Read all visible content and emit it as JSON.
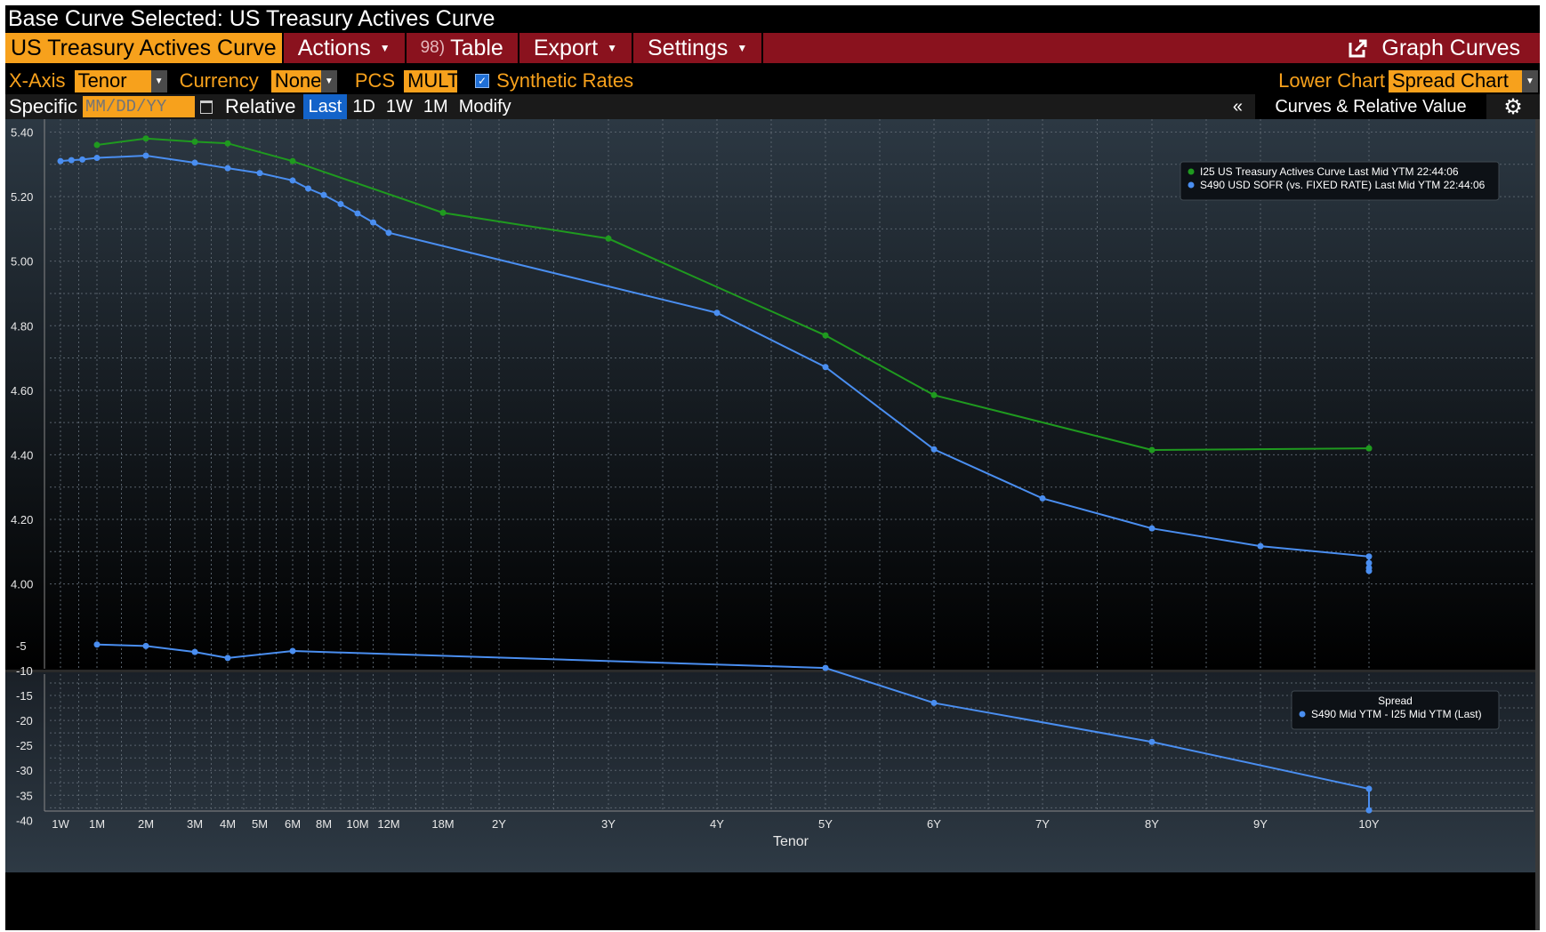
{
  "window": {
    "title": "Base Curve Selected: US Treasury Actives Curve"
  },
  "menu": {
    "active_tab": "US Treasury Actives Curve",
    "actions": "Actions",
    "table_icon_text": "98)",
    "table": "Table",
    "export": "Export",
    "settings": "Settings",
    "graph_curves": "Graph Curves"
  },
  "options": {
    "xaxis_label": "X-Axis",
    "xaxis_value": "Tenor",
    "currency_label": "Currency",
    "currency_value": "None",
    "pcs_label": "PCS",
    "pcs_value": "MULT",
    "synthetic_label": "Synthetic Rates",
    "lower_chart_label": "Lower Chart",
    "lower_chart_value": "Spread Chart"
  },
  "datebar": {
    "specific_label": "Specific",
    "date_placeholder": "MM/DD/YY",
    "relative_label": "Relative",
    "buttons": [
      "Last",
      "1D",
      "1W",
      "1M",
      "Modify"
    ],
    "collapse": "«",
    "panel_title": "Curves & Relative Value"
  },
  "colors": {
    "accent": "#f7a11c",
    "menu": "#8a121e",
    "treasury": "#1f9a1f",
    "sofr": "#4a8ef0",
    "active_button": "#1363c9"
  },
  "icons": [
    "calendar-icon",
    "external-link-icon",
    "gear-icon",
    "checkbox-checked-icon"
  ],
  "chart_data": [
    {
      "type": "line",
      "x_categories": [
        "1W",
        "1M",
        "2M",
        "3M",
        "4M",
        "5M",
        "6M",
        "8M",
        "10M",
        "12M",
        "18M",
        "2Y",
        "3Y",
        "4Y",
        "5Y",
        "6Y",
        "7Y",
        "8Y",
        "9Y",
        "10Y"
      ],
      "ylim": [
        3.93,
        5.44
      ],
      "yticks": [
        "4.00",
        "4.20",
        "4.40",
        "4.60",
        "4.80",
        "5.00",
        "5.20",
        "5.40"
      ],
      "grid": true,
      "legend_placement": "top-right",
      "series": [
        {
          "name": "I25 US Treasury Actives Curve Last Mid YTM 22:44:06",
          "color": "#1f9a1f",
          "points": [
            [
              1,
              5.36
            ],
            [
              2,
              5.38
            ],
            [
              3,
              5.37
            ],
            [
              4,
              5.365
            ],
            [
              6,
              5.31
            ],
            [
              10,
              5.15
            ],
            [
              12,
              5.07
            ],
            [
              14,
              4.77
            ],
            [
              15,
              4.585
            ],
            [
              17,
              4.415
            ],
            [
              19,
              4.42
            ],
            [
              22,
              4.42
            ]
          ]
        },
        {
          "name": "S490 USD SOFR (vs. FIXED RATE) Last Mid YTM 22:44:06",
          "color": "#4a8ef0",
          "points": [
            [
              0,
              5.31
            ],
            [
              0.3,
              5.313
            ],
            [
              0.6,
              5.315
            ],
            [
              1,
              5.32
            ],
            [
              2,
              5.327
            ],
            [
              3,
              5.305
            ],
            [
              4,
              5.288
            ],
            [
              5,
              5.273
            ],
            [
              6,
              5.25
            ],
            [
              6.5,
              5.225
            ],
            [
              7,
              5.205
            ],
            [
              7.5,
              5.177
            ],
            [
              8,
              5.148
            ],
            [
              8.5,
              5.12
            ],
            [
              9,
              5.088
            ],
            [
              13,
              4.84
            ],
            [
              14,
              4.672
            ],
            [
              15,
              4.417
            ],
            [
              16,
              4.265
            ],
            [
              17,
              4.172
            ],
            [
              18,
              4.117
            ],
            [
              19,
              4.085
            ],
            [
              20,
              4.065
            ],
            [
              21,
              4.05
            ],
            [
              22,
              4.04
            ]
          ]
        }
      ]
    },
    {
      "type": "line",
      "title": "Spread",
      "x_categories": [
        "1W",
        "1M",
        "2M",
        "3M",
        "4M",
        "5M",
        "6M",
        "8M",
        "10M",
        "12M",
        "18M",
        "2Y",
        "3Y",
        "4Y",
        "5Y",
        "6Y",
        "7Y",
        "8Y",
        "9Y",
        "10Y"
      ],
      "xlabel": "Tenor",
      "ylim": [
        -41,
        -2
      ],
      "yticks": [
        "-5",
        "-10",
        "-15",
        "-20",
        "-25",
        "-30",
        "-35",
        "-40"
      ],
      "grid": true,
      "legend_placement": "top-right",
      "series": [
        {
          "name": "S490 Mid YTM - I25 Mid YTM (Last)",
          "color": "#4a8ef0",
          "points": [
            [
              1,
              -4.8
            ],
            [
              2,
              -5.1
            ],
            [
              3,
              -6.3
            ],
            [
              4,
              -7.5
            ],
            [
              6,
              -6.1
            ],
            [
              14,
              -9.5
            ],
            [
              15,
              -16.5
            ],
            [
              17,
              -24.3
            ],
            [
              19,
              -33.7
            ],
            [
              22,
              -38.0
            ]
          ]
        }
      ]
    }
  ]
}
